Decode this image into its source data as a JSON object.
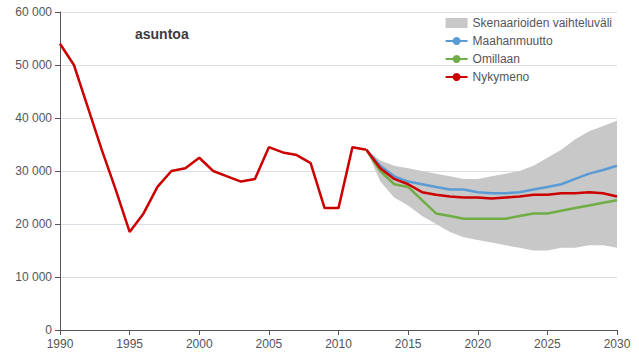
{
  "chart_data": {
    "type": "line",
    "title": "asuntoa",
    "xlim": [
      1990,
      2030
    ],
    "xticks": [
      1990,
      1995,
      2000,
      2005,
      2010,
      2015,
      2020,
      2025,
      2030
    ],
    "ylim": [
      0,
      60000
    ],
    "yticks": [
      0,
      {
        "value": 10000,
        "label": "10 000"
      },
      {
        "value": 20000,
        "label": "20 000"
      },
      {
        "value": 30000,
        "label": "30 000"
      },
      {
        "value": 40000,
        "label": "40 000"
      },
      {
        "value": 50000,
        "label": "50 000"
      },
      {
        "value": 60000,
        "label": "60 000"
      }
    ],
    "grid": true,
    "legend": "upper right",
    "series": [
      {
        "name": "Skenaarioiden vaihteluväli",
        "type": "band",
        "color": "#c8c8c8",
        "x": [
          2012,
          2013,
          2014,
          2015,
          2016,
          2017,
          2018,
          2019,
          2020,
          2021,
          2022,
          2023,
          2024,
          2025,
          2026,
          2027,
          2028,
          2029,
          2030
        ],
        "lower": [
          34000,
          28000,
          25000,
          23500,
          21500,
          20000,
          18500,
          17500,
          17000,
          16500,
          16000,
          15500,
          15000,
          15000,
          15500,
          15500,
          16000,
          16000,
          15500
        ],
        "upper": [
          34000,
          32000,
          31000,
          30500,
          30000,
          29500,
          29000,
          28500,
          28500,
          29000,
          29500,
          30000,
          31000,
          32500,
          34000,
          36000,
          37500,
          38500,
          39500
        ]
      },
      {
        "type": "line",
        "color": "#cc0000",
        "x": [
          1990,
          1991,
          1992,
          1993,
          1994,
          1995,
          1996,
          1997,
          1998,
          1999,
          2000,
          2001,
          2002,
          2003,
          2004,
          2005,
          2006,
          2007,
          2008,
          2009,
          2010,
          2011,
          2012
        ],
        "values": [
          54000,
          50000,
          42000,
          34000,
          26500,
          18500,
          22000,
          27000,
          30000,
          30500,
          32500,
          30000,
          29000,
          28000,
          28500,
          34500,
          33500,
          33000,
          31500,
          23000,
          23000,
          34500,
          34000
        ]
      },
      {
        "name": "Maahanmuutto",
        "type": "line",
        "color": "#5b9bd5",
        "x": [
          2012,
          2013,
          2014,
          2015,
          2016,
          2017,
          2018,
          2019,
          2020,
          2021,
          2022,
          2023,
          2024,
          2025,
          2026,
          2027,
          2028,
          2029,
          2030
        ],
        "values": [
          34000,
          31000,
          29000,
          28000,
          27500,
          27000,
          26500,
          26500,
          26000,
          25800,
          25800,
          26000,
          26500,
          27000,
          27500,
          28500,
          29500,
          30200,
          31000
        ]
      },
      {
        "name": "Omillaan",
        "type": "line",
        "color": "#70ad47",
        "x": [
          2012,
          2013,
          2014,
          2015,
          2016,
          2017,
          2018,
          2019,
          2020,
          2021,
          2022,
          2023,
          2024,
          2025,
          2026,
          2027,
          2028,
          2029,
          2030
        ],
        "values": [
          34000,
          30000,
          27500,
          27000,
          24500,
          22000,
          21500,
          21000,
          21000,
          21000,
          21000,
          21500,
          22000,
          22000,
          22500,
          23000,
          23500,
          24000,
          24500
        ]
      },
      {
        "name": "Nykymeno",
        "type": "line",
        "color": "#cc0000",
        "x": [
          2012,
          2013,
          2014,
          2015,
          2016,
          2017,
          2018,
          2019,
          2020,
          2021,
          2022,
          2023,
          2024,
          2025,
          2026,
          2027,
          2028,
          2029,
          2030
        ],
        "values": [
          34000,
          30500,
          28500,
          27500,
          26000,
          25500,
          25200,
          25000,
          25000,
          24800,
          25000,
          25200,
          25500,
          25500,
          25800,
          25800,
          26000,
          25800,
          25200
        ]
      }
    ]
  }
}
